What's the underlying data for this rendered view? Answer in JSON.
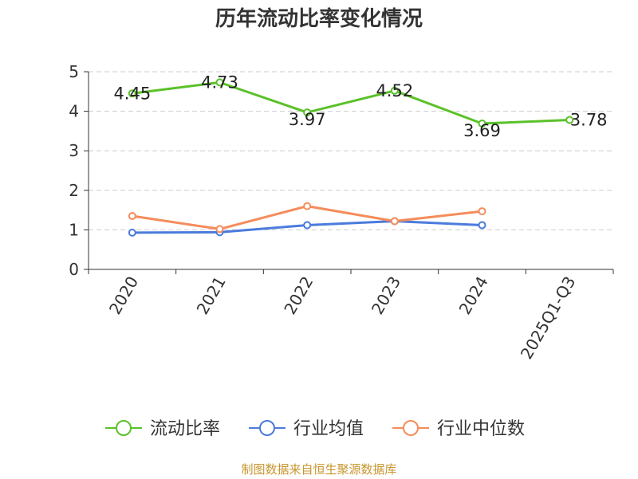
{
  "chart_data": {
    "type": "line",
    "title": "历年流动比率变化情况",
    "categories": [
      "2020",
      "2021",
      "2022",
      "2023",
      "2024",
      "2025Q1-Q3"
    ],
    "ylim": [
      0,
      5
    ],
    "yticks": [
      0,
      1,
      2,
      3,
      4,
      5
    ],
    "grid": "horizontal dashed",
    "legend": "bottom",
    "series": [
      {
        "name": "流动比率",
        "color": "#5bc12a",
        "values": [
          4.45,
          4.73,
          3.97,
          4.52,
          3.69,
          3.78
        ],
        "labels": [
          "4.45",
          "4.73",
          "3.97",
          "4.52",
          "3.69",
          "3.78"
        ]
      },
      {
        "name": "行业均值",
        "color": "#4b7bdc",
        "values": [
          0.93,
          0.94,
          1.12,
          1.22,
          1.12,
          null
        ]
      },
      {
        "name": "行业中位数",
        "color": "#f58c5a",
        "values": [
          1.35,
          1.02,
          1.6,
          1.22,
          1.47,
          null
        ]
      }
    ]
  },
  "footer": {
    "source": "制图数据来自恒生聚源数据库"
  }
}
